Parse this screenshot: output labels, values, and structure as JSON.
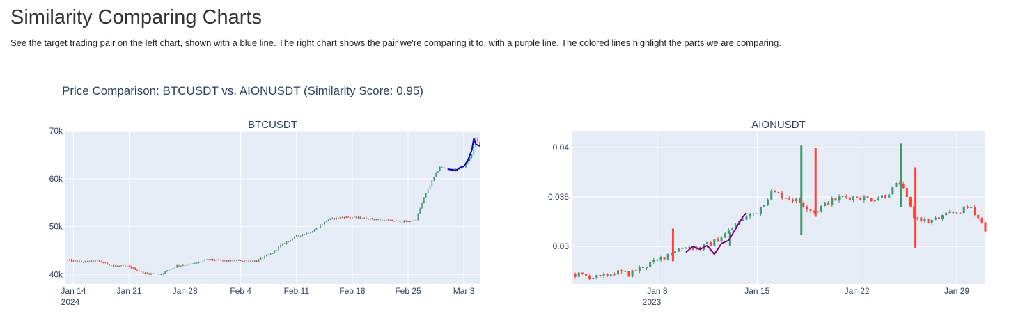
{
  "page": {
    "title": "Similarity Comparing Charts",
    "description": "See the target trading pair on the left chart, shown with a blue line. The right chart shows the pair we're comparing it to, with a purple line. The colored lines highlight the parts we are comparing."
  },
  "colors": {
    "increasing": "#3d9970",
    "decreasing": "#ff4136",
    "target_line": "#0000cc",
    "compare_line": "#800080",
    "plot_bg": "#e5ecf6",
    "grid": "#ffffff",
    "text": "#2a3f5f"
  },
  "chart_data": [
    {
      "type": "candlestick",
      "figure_title": "Price Comparison: BTCUSDT vs. AIONUSDT (Similarity Score: 0.95)",
      "title": "BTCUSDT",
      "x_axis": {
        "type": "date",
        "ticks": [
          "Jan 14",
          "Jan 21",
          "Jan 28",
          "Feb 4",
          "Feb 11",
          "Feb 18",
          "Feb 25",
          "Mar 3"
        ],
        "year_label": "2024",
        "range": [
          "2024-01-13",
          "2024-03-05"
        ]
      },
      "y_axis": {
        "ticks": [
          "40k",
          "50k",
          "60k",
          "70k"
        ],
        "range": [
          38000,
          70000
        ]
      },
      "grid": true,
      "price_path": [
        [
          "2024-01-13",
          43000
        ],
        [
          "2024-01-15",
          42600
        ],
        [
          "2024-01-17",
          42800
        ],
        [
          "2024-01-19",
          41800
        ],
        [
          "2024-01-21",
          41600
        ],
        [
          "2024-01-23",
          40200
        ],
        [
          "2024-01-25",
          40100
        ],
        [
          "2024-01-27",
          41800
        ],
        [
          "2024-01-29",
          42200
        ],
        [
          "2024-01-31",
          43100
        ],
        [
          "2024-02-02",
          42800
        ],
        [
          "2024-02-04",
          42900
        ],
        [
          "2024-02-06",
          42800
        ],
        [
          "2024-02-08",
          44500
        ],
        [
          "2024-02-09",
          46000
        ],
        [
          "2024-02-11",
          48000
        ],
        [
          "2024-02-13",
          49000
        ],
        [
          "2024-02-15",
          51500
        ],
        [
          "2024-02-17",
          52000
        ],
        [
          "2024-02-19",
          51800
        ],
        [
          "2024-02-21",
          51500
        ],
        [
          "2024-02-23",
          51200
        ],
        [
          "2024-02-25",
          51000
        ],
        [
          "2024-02-26",
          51500
        ],
        [
          "2024-02-27",
          56000
        ],
        [
          "2024-02-28",
          59500
        ],
        [
          "2024-02-29",
          62500
        ],
        [
          "2024-03-01",
          62000
        ],
        [
          "2024-03-02",
          61800
        ],
        [
          "2024-03-03",
          62500
        ],
        [
          "2024-03-04",
          65000
        ],
        [
          "2024-03-04T12:00",
          68300
        ],
        [
          "2024-03-05",
          67000
        ]
      ],
      "highlight": {
        "name": "target",
        "points": [
          [
            "2024-03-01",
            62000
          ],
          [
            "2024-03-02",
            61700
          ],
          [
            "2024-03-02T12:00",
            62300
          ],
          [
            "2024-03-03",
            62600
          ],
          [
            "2024-03-03T12:00",
            63800
          ],
          [
            "2024-03-04",
            66000
          ],
          [
            "2024-03-04T06:00",
            68400
          ],
          [
            "2024-03-04T12:00",
            67200
          ],
          [
            "2024-03-05",
            66800
          ]
        ]
      }
    },
    {
      "type": "candlestick",
      "title": "AIONUSDT",
      "x_axis": {
        "type": "date",
        "ticks": [
          "Jan 8",
          "Jan 15",
          "Jan 22",
          "Jan 29"
        ],
        "year_label": "2023",
        "range": [
          "2023-01-02",
          "2023-01-31"
        ]
      },
      "y_axis": {
        "ticks": [
          "0.03",
          "0.035",
          "0.04"
        ],
        "range": [
          0.0262,
          0.0417
        ]
      },
      "grid": true,
      "price_path": [
        [
          "2023-01-02",
          0.0272
        ],
        [
          "2023-01-03",
          0.027
        ],
        [
          "2023-01-04",
          0.0268
        ],
        [
          "2023-01-05",
          0.0274
        ],
        [
          "2023-01-06",
          0.0272
        ],
        [
          "2023-01-07",
          0.028
        ],
        [
          "2023-01-08",
          0.0285
        ],
        [
          "2023-01-09",
          0.0295
        ],
        [
          "2023-01-10",
          0.03
        ],
        [
          "2023-01-11",
          0.0298
        ],
        [
          "2023-01-12",
          0.0305
        ],
        [
          "2023-01-13",
          0.0315
        ],
        [
          "2023-01-14",
          0.0328
        ],
        [
          "2023-01-15",
          0.0335
        ],
        [
          "2023-01-16",
          0.0355
        ],
        [
          "2023-01-17",
          0.035
        ],
        [
          "2023-01-18",
          0.0345
        ],
        [
          "2023-01-19",
          0.0335
        ],
        [
          "2023-01-20",
          0.0345
        ],
        [
          "2023-01-21",
          0.035
        ],
        [
          "2023-01-22",
          0.035
        ],
        [
          "2023-01-23",
          0.0348
        ],
        [
          "2023-01-24",
          0.0352
        ],
        [
          "2023-01-25",
          0.0365
        ],
        [
          "2023-01-26",
          0.033
        ],
        [
          "2023-01-27",
          0.0325
        ],
        [
          "2023-01-28",
          0.033
        ],
        [
          "2023-01-29",
          0.0335
        ],
        [
          "2023-01-30",
          0.034
        ],
        [
          "2023-01-31",
          0.0318
        ]
      ],
      "spikes": [
        [
          "2023-01-18",
          0.0402,
          0.0312
        ],
        [
          "2023-01-19",
          0.04,
          0.033
        ],
        [
          "2023-01-25",
          0.0404,
          0.034
        ],
        [
          "2023-01-26",
          0.038,
          0.0298
        ],
        [
          "2023-01-13",
          0.0315,
          0.03
        ],
        [
          "2023-01-09",
          0.0318,
          0.0285
        ]
      ],
      "highlight": {
        "name": "compare",
        "points": [
          [
            "2023-01-10",
            0.0294
          ],
          [
            "2023-01-10T12:00",
            0.03
          ],
          [
            "2023-01-11",
            0.0297
          ],
          [
            "2023-01-11T12:00",
            0.0301
          ],
          [
            "2023-01-12",
            0.0292
          ],
          [
            "2023-01-12T12:00",
            0.0303
          ],
          [
            "2023-01-13",
            0.0306
          ],
          [
            "2023-01-13T12:00",
            0.0318
          ],
          [
            "2023-01-14",
            0.033
          ],
          [
            "2023-01-14T06:00",
            0.0334
          ]
        ]
      }
    }
  ]
}
